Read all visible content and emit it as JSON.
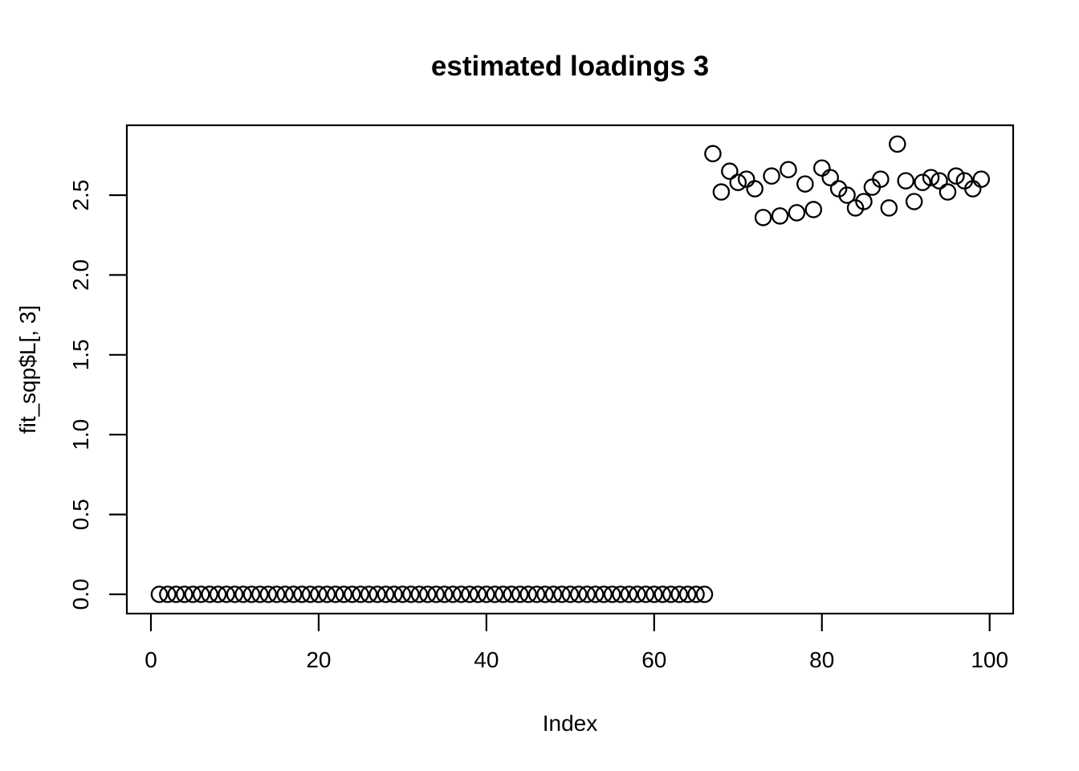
{
  "figure": {
    "title": "estimated loadings 3",
    "xlabel": "Index",
    "ylabel": "fit_sqp$L[, 3]"
  },
  "chart_data": {
    "type": "scatter",
    "title": "estimated loadings 3",
    "xlabel": "Index",
    "ylabel": "fit_sqp$L[, 3]",
    "marker": "open-circle",
    "marker_color": "#000000",
    "background_color": "#ffffff",
    "grid": false,
    "legend": false,
    "xlim": [
      -3,
      104
    ],
    "ylim": [
      -0.11,
      2.93
    ],
    "x_ticks": [
      0,
      20,
      40,
      60,
      80,
      100
    ],
    "x_tick_labels": [
      "0",
      "20",
      "40",
      "60",
      "80",
      "100"
    ],
    "y_ticks": [
      0,
      0.5,
      1,
      1.5,
      2,
      2.5
    ],
    "y_tick_labels": [
      "0.0",
      "0.5",
      "1.0",
      "1.5",
      "2.0",
      "2.5"
    ],
    "points": [
      [
        1,
        0
      ],
      [
        2,
        0
      ],
      [
        3,
        0
      ],
      [
        4,
        0
      ],
      [
        5,
        0
      ],
      [
        6,
        0
      ],
      [
        7,
        0
      ],
      [
        8,
        0
      ],
      [
        9,
        0
      ],
      [
        10,
        0
      ],
      [
        11,
        0
      ],
      [
        12,
        0
      ],
      [
        13,
        0
      ],
      [
        14,
        0
      ],
      [
        15,
        0
      ],
      [
        16,
        0
      ],
      [
        17,
        0
      ],
      [
        18,
        0
      ],
      [
        19,
        0
      ],
      [
        20,
        0
      ],
      [
        21,
        0
      ],
      [
        22,
        0
      ],
      [
        23,
        0
      ],
      [
        24,
        0
      ],
      [
        25,
        0
      ],
      [
        26,
        0
      ],
      [
        27,
        0
      ],
      [
        28,
        0
      ],
      [
        29,
        0
      ],
      [
        30,
        0
      ],
      [
        31,
        0
      ],
      [
        32,
        0
      ],
      [
        33,
        0
      ],
      [
        34,
        0
      ],
      [
        35,
        0
      ],
      [
        36,
        0
      ],
      [
        37,
        0
      ],
      [
        38,
        0
      ],
      [
        39,
        0
      ],
      [
        40,
        0
      ],
      [
        41,
        0
      ],
      [
        42,
        0
      ],
      [
        43,
        0
      ],
      [
        44,
        0
      ],
      [
        45,
        0
      ],
      [
        46,
        0
      ],
      [
        47,
        0
      ],
      [
        48,
        0
      ],
      [
        49,
        0
      ],
      [
        50,
        0
      ],
      [
        51,
        0
      ],
      [
        52,
        0
      ],
      [
        53,
        0
      ],
      [
        54,
        0
      ],
      [
        55,
        0
      ],
      [
        56,
        0
      ],
      [
        57,
        0
      ],
      [
        58,
        0
      ],
      [
        59,
        0
      ],
      [
        60,
        0
      ],
      [
        61,
        0
      ],
      [
        62,
        0
      ],
      [
        63,
        0
      ],
      [
        64,
        0
      ],
      [
        65,
        0
      ],
      [
        66,
        0
      ],
      [
        67,
        2.76
      ],
      [
        68,
        2.52
      ],
      [
        69,
        2.65
      ],
      [
        70,
        2.58
      ],
      [
        71,
        2.6
      ],
      [
        72,
        2.54
      ],
      [
        73,
        2.36
      ],
      [
        74,
        2.62
      ],
      [
        75,
        2.37
      ],
      [
        76,
        2.66
      ],
      [
        77,
        2.39
      ],
      [
        78,
        2.57
      ],
      [
        79,
        2.41
      ],
      [
        80,
        2.67
      ],
      [
        81,
        2.61
      ],
      [
        82,
        2.54
      ],
      [
        83,
        2.5
      ],
      [
        84,
        2.42
      ],
      [
        85,
        2.46
      ],
      [
        86,
        2.55
      ],
      [
        87,
        2.6
      ],
      [
        88,
        2.42
      ],
      [
        89,
        2.82
      ],
      [
        90,
        2.59
      ],
      [
        91,
        2.46
      ],
      [
        92,
        2.58
      ],
      [
        93,
        2.61
      ],
      [
        94,
        2.59
      ],
      [
        95,
        2.52
      ],
      [
        96,
        2.62
      ],
      [
        97,
        2.59
      ],
      [
        98,
        2.54
      ],
      [
        99,
        2.6
      ]
    ]
  }
}
